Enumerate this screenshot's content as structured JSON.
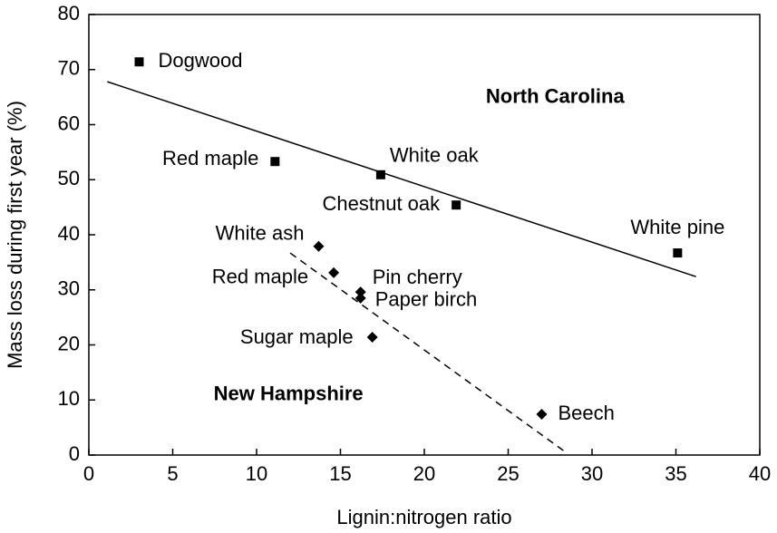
{
  "chart_data": {
    "type": "scatter",
    "x_label": "Lignin:nitrogen ratio",
    "y_label": "Mass loss during first year (%)",
    "xlim": [
      0,
      40
    ],
    "xticks": [
      0,
      5,
      10,
      15,
      20,
      25,
      30,
      35,
      40
    ],
    "ylim": [
      0,
      80
    ],
    "yticks": [
      0,
      10,
      20,
      30,
      40,
      50,
      60,
      70,
      80
    ],
    "series": [
      {
        "marker": "square",
        "color": "#000000",
        "x": [
          3.0,
          11.1,
          17.4,
          21.9,
          35.1
        ],
        "y": [
          71.4,
          53.3,
          50.9,
          45.4,
          36.7
        ],
        "labels": [
          "Dogwood",
          "Red maple",
          "White oak",
          "Chestnut oak",
          "White pine"
        ]
      },
      {
        "marker": "diamond",
        "color": "#000000",
        "x": [
          13.7,
          14.6,
          16.2,
          16.2,
          16.9,
          27.0
        ],
        "y": [
          37.9,
          33.1,
          29.6,
          28.5,
          21.4,
          7.4
        ],
        "labels": [
          "White ash",
          "Red maple",
          "Pin cherry",
          "Paper birch",
          "Sugar maple",
          "Beech"
        ]
      }
    ],
    "trendlines": [
      {
        "x": [
          1.1,
          36.2
        ],
        "y": [
          67.8,
          32.4
        ],
        "dashed": false
      },
      {
        "x": [
          12.0,
          28.3
        ],
        "y": [
          36.7,
          0.8
        ],
        "dashed": true
      }
    ],
    "annotations": [
      {
        "text": "North Carolina",
        "x": 27.8,
        "y": 64.9
      },
      {
        "text": "New Hampshire",
        "x": 11.9,
        "y": 10.9
      }
    ]
  }
}
